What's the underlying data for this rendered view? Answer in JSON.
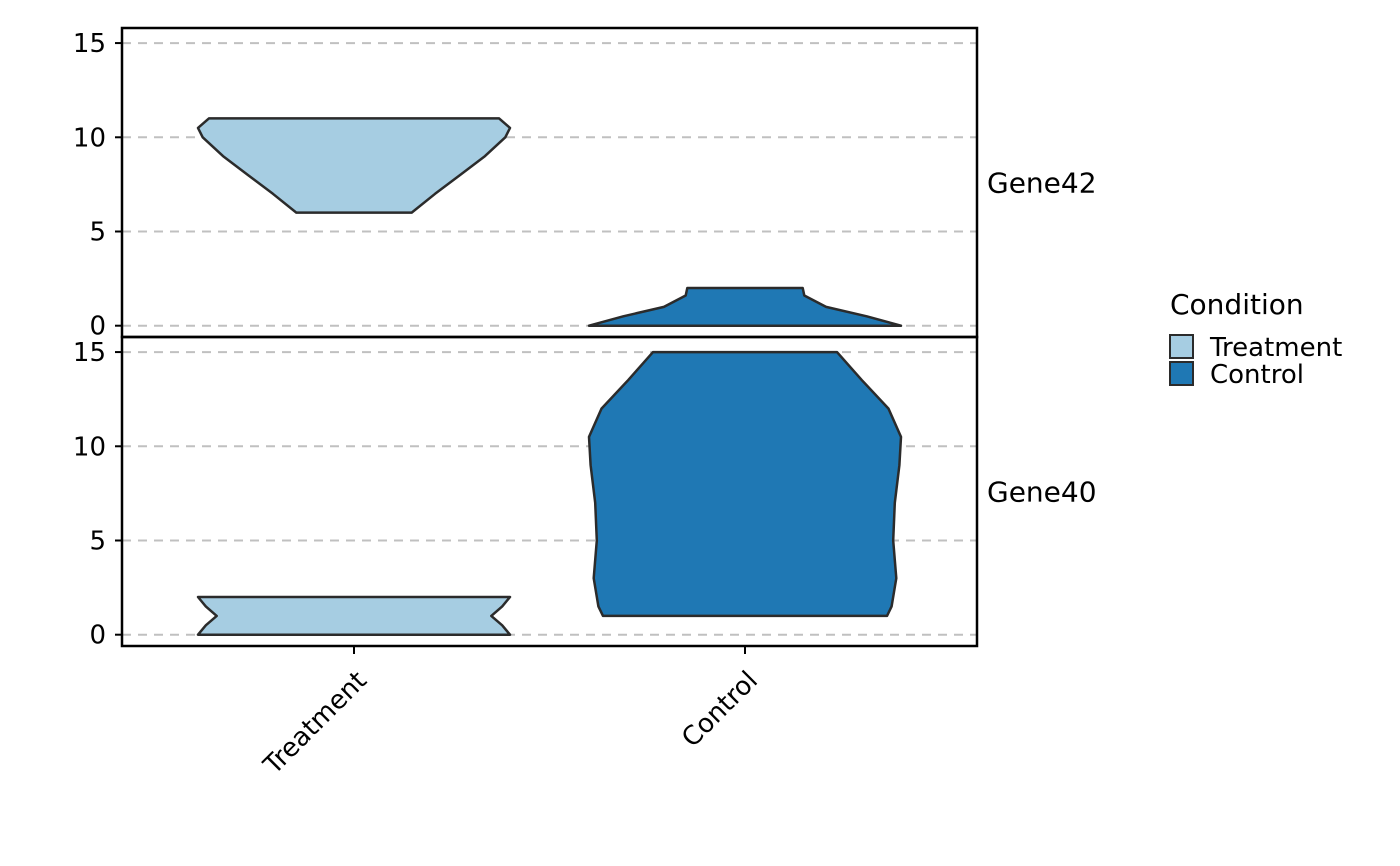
{
  "chart_data": {
    "type": "violin",
    "categories": [
      "Treatment",
      "Control"
    ],
    "ylim": [
      -0.6,
      15.8
    ],
    "yticks": [
      0,
      5,
      10,
      15
    ],
    "grid": "horizontal dashed",
    "legend": {
      "title": "Condition",
      "placement": "right",
      "entries": [
        {
          "label": "Treatment",
          "color": "#a6cde2"
        },
        {
          "label": "Control",
          "color": "#1f78b4"
        }
      ]
    },
    "panels": [
      {
        "strip": "Gene42",
        "violins": [
          {
            "category": "Treatment",
            "color": "#a6cde2",
            "profile": [
              [
                6,
                0.37
              ],
              [
                7,
                0.52
              ],
              [
                8,
                0.68
              ],
              [
                9,
                0.84
              ],
              [
                10,
                0.97
              ],
              [
                10.5,
                1.0
              ],
              [
                11,
                0.93
              ]
            ]
          },
          {
            "category": "Control",
            "color": "#1f78b4",
            "profile": [
              [
                0,
                1.0
              ],
              [
                0.5,
                0.78
              ],
              [
                1,
                0.52
              ],
              [
                1.6,
                0.38
              ],
              [
                2,
                0.37
              ]
            ]
          }
        ]
      },
      {
        "strip": "Gene40",
        "violins": [
          {
            "category": "Treatment",
            "color": "#a6cde2",
            "profile": [
              [
                0,
                1.0
              ],
              [
                0.5,
                0.95
              ],
              [
                1,
                0.88
              ],
              [
                1.5,
                0.95
              ],
              [
                2,
                1.0
              ]
            ]
          },
          {
            "category": "Control",
            "color": "#1f78b4",
            "profile": [
              [
                1,
                0.91
              ],
              [
                1.5,
                0.94
              ],
              [
                3,
                0.97
              ],
              [
                5,
                0.95
              ],
              [
                7,
                0.96
              ],
              [
                9,
                0.99
              ],
              [
                10.5,
                1.0
              ],
              [
                12,
                0.92
              ],
              [
                13.5,
                0.75
              ],
              [
                15,
                0.59
              ]
            ]
          }
        ]
      }
    ]
  }
}
